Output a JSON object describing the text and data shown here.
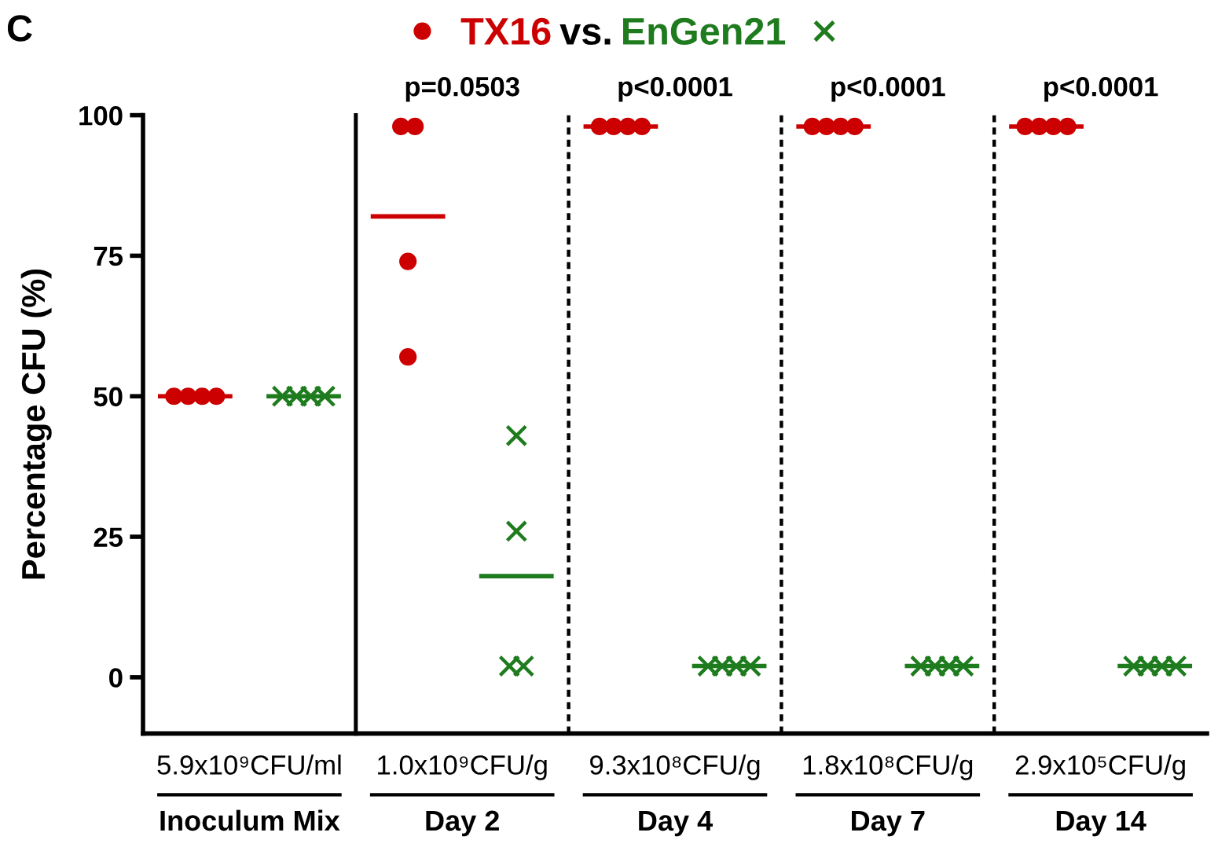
{
  "chart_data": [
    {
      "type": "scatter",
      "ylabel": "Percentage CFU (%)",
      "categories": [
        "Inoculum Mix"
      ],
      "series": [
        {
          "name": "TX16",
          "color": "#cc0000",
          "marker": "circle",
          "x": [
            "Inoculum Mix",
            "Inoculum Mix",
            "Inoculum Mix",
            "Inoculum Mix"
          ],
          "values": [
            50,
            50,
            50,
            50
          ]
        },
        {
          "name": "EnGen21",
          "color": "#1e7b1e",
          "marker": "cross",
          "x": [
            "Inoculum Mix",
            "Inoculum Mix",
            "Inoculum Mix",
            "Inoculum Mix"
          ],
          "values": [
            50,
            50,
            50,
            50
          ]
        }
      ],
      "ref_lines": [
        {
          "axis": "y",
          "value": 50,
          "color": "#cc0000"
        },
        {
          "axis": "y",
          "value": 50,
          "color": "#1e7b1e"
        }
      ],
      "ylim": [
        -10,
        100
      ],
      "yticks": [
        0,
        25,
        50,
        75,
        100
      ],
      "legend": "top",
      "annotations": [
        "C",
        "vs.",
        "5.9x10⁹CFU/ml"
      ]
    },
    {
      "type": "scatter",
      "categories": [
        "Day 2",
        "Day 4",
        "Day 7",
        "Day 14"
      ],
      "series": [
        {
          "color": "#cc0000",
          "marker": "circle",
          "x": [
            "Day 2",
            "Day 2",
            "Day 2",
            "Day 2",
            "Day 4",
            "Day 4",
            "Day 4",
            "Day 4",
            "Day 7",
            "Day 7",
            "Day 7",
            "Day 7",
            "Day 14",
            "Day 14",
            "Day 14",
            "Day 14"
          ],
          "values": [
            98,
            98,
            74,
            57,
            98,
            98,
            98,
            98,
            98,
            98,
            98,
            98,
            98,
            98,
            98,
            98
          ]
        },
        {
          "color": "#1e7b1e",
          "marker": "cross",
          "x": [
            "Day 2",
            "Day 2",
            "Day 2",
            "Day 2",
            "Day 4",
            "Day 4",
            "Day 4",
            "Day 4",
            "Day 7",
            "Day 7",
            "Day 7",
            "Day 7",
            "Day 14",
            "Day 14",
            "Day 14",
            "Day 14"
          ],
          "values": [
            43,
            26,
            2,
            2,
            2,
            2,
            2,
            2,
            2,
            2,
            2,
            2,
            2,
            2,
            2,
            2
          ]
        }
      ],
      "ref_lines": [
        {
          "axis": "y",
          "value": 82,
          "color": "#cc0000"
        },
        {
          "axis": "y",
          "value": 18,
          "color": "#1e7b1e"
        },
        {
          "axis": "y",
          "value": 98,
          "color": "#cc0000"
        },
        {
          "axis": "y",
          "value": 2,
          "color": "#1e7b1e"
        }
      ],
      "ylim": [
        -10,
        100
      ],
      "tick_labels": "x",
      "annotations": [
        "p=0.0503",
        "p<0.0001",
        "p<0.0001",
        "p<0.0001",
        "1.0x10⁹CFU/g",
        "9.3x10⁸CFU/g",
        "1.8x10⁸CFU/g",
        "2.9x10⁵CFU/g"
      ]
    }
  ]
}
